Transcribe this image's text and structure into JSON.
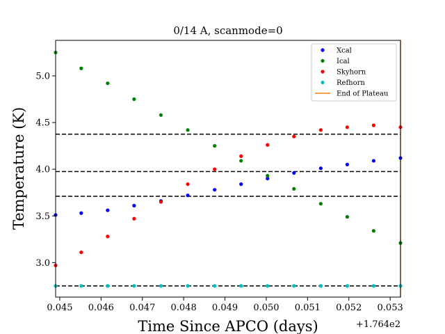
{
  "chart_data": {
    "type": "scatter",
    "title": "0/14 A, scanmode=0",
    "xlabel": "Time Since APCO (days)",
    "ylabel": "Temperature (K)",
    "x_offset_label": "+1.764e2",
    "xlim": [
      0.0449,
      0.05325
    ],
    "ylim": [
      2.63,
      5.38
    ],
    "x_ticks": [
      "0.045",
      "0.046",
      "0.047",
      "0.048",
      "0.049",
      "0.050",
      "0.051",
      "0.052",
      "0.053"
    ],
    "y_ticks": [
      "3.0",
      "3.5",
      "4.0",
      "4.5",
      "5.0"
    ],
    "grid": false,
    "legend_position": "top-right",
    "x": [
      0.0449,
      0.04552,
      0.04616,
      0.0468,
      0.04745,
      0.0481,
      0.04875,
      0.04939,
      0.05003,
      0.05067,
      0.05132,
      0.05196,
      0.0526,
      0.05325
    ],
    "series": [
      {
        "name": "Xcal",
        "color": "#0000ff",
        "values": [
          3.51,
          3.53,
          3.56,
          3.61,
          3.66,
          3.72,
          3.78,
          3.84,
          3.9,
          3.96,
          4.01,
          4.05,
          4.09,
          4.12
        ]
      },
      {
        "name": "Ical",
        "color": "#008000",
        "values": [
          5.25,
          5.08,
          4.92,
          4.75,
          4.58,
          4.42,
          4.25,
          4.09,
          3.93,
          3.79,
          3.63,
          3.49,
          3.34,
          3.21
        ]
      },
      {
        "name": "Skyhorn",
        "color": "#ff0000",
        "values": [
          2.97,
          3.11,
          3.28,
          3.47,
          3.65,
          3.84,
          4.0,
          4.14,
          4.26,
          4.35,
          4.42,
          4.45,
          4.47,
          4.45
        ]
      },
      {
        "name": "Refhorn",
        "color": "#00bfbf",
        "values": [
          2.75,
          2.75,
          2.75,
          2.75,
          2.75,
          2.75,
          2.75,
          2.75,
          2.75,
          2.75,
          2.75,
          2.75,
          2.75,
          2.75
        ]
      }
    ],
    "hlines": [
      4.375,
      3.975,
      3.71,
      2.75
    ],
    "vline": {
      "name": "End of Plateau",
      "color": "#ff7f0e",
      "x": 0.05325
    }
  }
}
